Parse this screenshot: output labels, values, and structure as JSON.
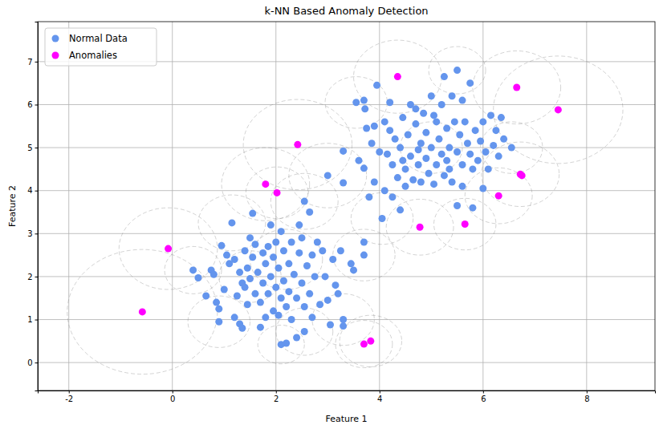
{
  "chart_data": {
    "type": "scatter",
    "title": "k-NN Based Anomaly Detection",
    "x_label": "Feature 1",
    "y_label": "Feature 2",
    "xlim": [
      -2.6,
      9.32
    ],
    "ylim": [
      -0.65,
      7.93
    ],
    "xticks": [
      -2,
      0,
      2,
      4,
      6,
      8
    ],
    "yticks": [
      0,
      1,
      2,
      3,
      4,
      5,
      6,
      7
    ],
    "grid": true,
    "legend": "upper left",
    "series": [
      {
        "name": "Normal Data",
        "color": "#6495ed",
        "marker": "circle",
        "x": [
          0.4,
          0.5,
          0.65,
          0.75,
          0.8,
          0.85,
          0.9,
          0.9,
          0.95,
          1.0,
          1.05,
          1.1,
          1.15,
          1.2,
          1.2,
          1.25,
          1.3,
          1.3,
          1.35,
          1.35,
          1.4,
          1.4,
          1.45,
          1.45,
          1.5,
          1.5,
          1.55,
          1.55,
          1.6,
          1.6,
          1.65,
          1.7,
          1.7,
          1.75,
          1.75,
          1.8,
          1.8,
          1.85,
          1.85,
          1.9,
          1.9,
          1.95,
          1.95,
          2.0,
          2.0,
          2.05,
          2.05,
          2.1,
          2.1,
          2.1,
          2.15,
          2.15,
          2.2,
          2.2,
          2.25,
          2.25,
          2.3,
          2.3,
          2.35,
          2.4,
          2.4,
          2.45,
          2.45,
          2.5,
          2.5,
          2.55,
          2.55,
          2.55,
          2.6,
          2.65,
          2.65,
          2.7,
          2.7,
          2.75,
          2.8,
          2.85,
          2.9,
          2.95,
          3.0,
          3.05,
          3.1,
          3.15,
          3.2,
          3.25,
          3.3,
          3.3,
          3.45,
          3.5,
          3.7,
          3.7,
          3.0,
          3.3,
          3.3,
          3.55,
          3.6,
          3.7,
          3.72,
          3.7,
          3.75,
          3.8,
          3.85,
          3.9,
          3.95,
          4.0,
          4.05,
          4.1,
          4.1,
          4.15,
          4.2,
          4.25,
          4.25,
          4.3,
          4.35,
          4.4,
          4.4,
          4.45,
          4.5,
          4.5,
          4.55,
          4.6,
          4.6,
          4.65,
          4.7,
          4.75,
          4.8,
          4.8,
          4.85,
          4.9,
          4.9,
          4.95,
          5.0,
          5.0,
          5.05,
          5.1,
          5.1,
          5.15,
          5.2,
          5.2,
          5.25,
          5.25,
          5.3,
          5.3,
          5.35,
          5.4,
          5.4,
          5.45,
          5.5,
          5.5,
          5.5,
          5.55,
          5.6,
          5.6,
          5.6,
          5.65,
          5.7,
          5.75,
          5.75,
          5.8,
          5.8,
          5.85,
          5.9,
          5.95,
          6.0,
          6.0,
          6.05,
          6.1,
          6.15,
          6.2,
          6.25,
          6.3,
          6.35,
          6.4,
          6.55,
          4.7,
          5.05,
          4.45,
          5.35,
          4.2,
          3.9,
          4.75
        ],
        "values": [
          2.15,
          1.97,
          1.55,
          2.15,
          2.05,
          1.4,
          1.25,
          0.95,
          2.72,
          1.7,
          2.5,
          2.3,
          3.25,
          2.4,
          1.05,
          1.55,
          0.9,
          2.1,
          1.85,
          0.8,
          2.6,
          1.75,
          2.2,
          1.35,
          2.9,
          1.95,
          3.47,
          2.45,
          1.6,
          2.75,
          2.1,
          0.82,
          1.4,
          2.55,
          1.85,
          2.3,
          1.05,
          2.7,
          1.6,
          2.0,
          3.2,
          1.2,
          2.45,
          1.75,
          2.8,
          1.1,
          2.2,
          0.42,
          1.5,
          3.05,
          2.6,
          1.9,
          0.45,
          1.3,
          2.3,
          1.65,
          2.8,
          1.0,
          2.05,
          0.58,
          1.5,
          2.55,
          3.2,
          1.85,
          2.9,
          0.72,
          3.75,
          1.3,
          2.25,
          3.5,
          1.6,
          2.5,
          1.05,
          2.0,
          2.8,
          1.35,
          2.6,
          2.0,
          1.45,
          0.88,
          2.4,
          1.8,
          1.6,
          2.6,
          1.0,
          0.85,
          2.3,
          2.15,
          2.5,
          2.8,
          4.35,
          4.18,
          4.92,
          6.05,
          4.7,
          6.1,
          5.9,
          4.52,
          5.45,
          3.85,
          5.1,
          5.5,
          6.45,
          4.9,
          3.35,
          4.0,
          5.6,
          4.85,
          5.4,
          3.85,
          4.6,
          5.2,
          4.3,
          3.55,
          5.0,
          5.7,
          4.5,
          4.1,
          5.3,
          4.8,
          6.0,
          4.25,
          5.55,
          4.6,
          5.1,
          4.2,
          5.8,
          4.75,
          5.35,
          4.4,
          6.2,
          5.0,
          4.15,
          5.6,
          4.6,
          5.2,
          4.85,
          6.0,
          6.65,
          4.35,
          5.45,
          4.7,
          5.0,
          6.2,
          4.2,
          5.6,
          6.8,
          3.65,
          4.9,
          5.3,
          6.1,
          4.1,
          4.6,
          5.6,
          5.1,
          6.5,
          4.85,
          3.6,
          4.5,
          5.4,
          4.7,
          5.15,
          4.05,
          5.6,
          4.9,
          4.5,
          5.75,
          5.05,
          5.4,
          4.8,
          5.7,
          5.2,
          5.0,
          5.9,
          5.75,
          4.7,
          4.5,
          6.05,
          4.2,
          4.95
        ]
      },
      {
        "name": "Anomalies",
        "color": "#ff00ff",
        "marker": "circle",
        "x": [
          -0.58,
          -0.08,
          1.8,
          2.02,
          2.42,
          4.35,
          6.65,
          7.45,
          6.72,
          6.75,
          6.3,
          5.65,
          4.78,
          3.7,
          3.83
        ],
        "values": [
          1.18,
          2.65,
          4.15,
          3.95,
          5.07,
          6.65,
          6.4,
          5.88,
          4.38,
          4.35,
          3.88,
          3.22,
          3.15,
          0.43,
          0.5
        ]
      }
    ],
    "neighborhoods": {
      "color": "#808080",
      "line_style": "dashed",
      "x": [
        -0.58,
        -0.08,
        0.4,
        0.9,
        1.15,
        1.8,
        2.02,
        2.42,
        2.55,
        2.1,
        2.55,
        3.7,
        3.83,
        3.3,
        3.7,
        2.2,
        1.5,
        3.0,
        3.55,
        4.35,
        5.5,
        6.65,
        7.45,
        6.72,
        6.3,
        5.65,
        4.78,
        4.05,
        6.55,
        5.0
      ],
      "y": [
        1.18,
        2.65,
        2.15,
        0.95,
        3.25,
        4.15,
        3.95,
        5.07,
        3.75,
        0.42,
        0.72,
        0.43,
        0.5,
        1.0,
        2.5,
        2.4,
        2.0,
        4.35,
        6.05,
        6.65,
        6.8,
        6.4,
        5.88,
        4.38,
        3.88,
        3.22,
        3.15,
        3.35,
        5.0,
        5.0
      ],
      "radius": [
        1.45,
        0.95,
        0.55,
        0.6,
        0.65,
        0.85,
        0.6,
        1.05,
        0.65,
        0.45,
        0.55,
        0.55,
        0.6,
        0.6,
        0.6,
        0.7,
        0.6,
        0.75,
        0.6,
        0.85,
        0.55,
        0.85,
        1.25,
        0.75,
        0.65,
        0.6,
        0.65,
        0.6,
        0.6,
        0.6
      ]
    }
  }
}
